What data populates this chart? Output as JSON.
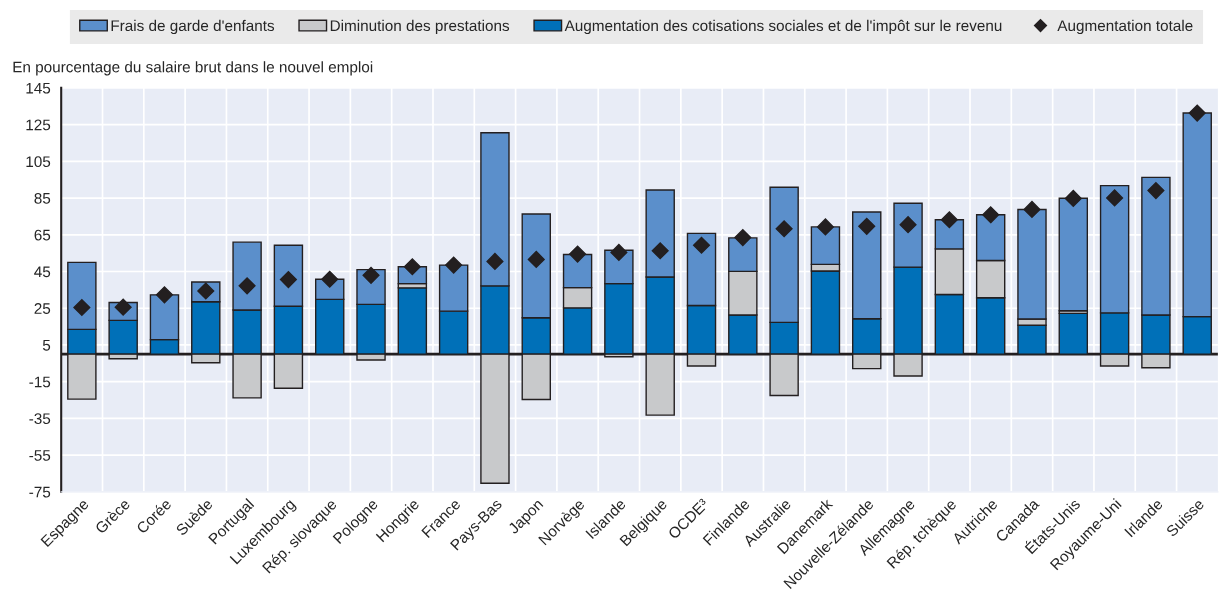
{
  "chart_data": {
    "type": "bar",
    "stacked": true,
    "ylabel": "En pourcentage du salaire brut dans le nouvel emploi",
    "categories": [
      "Espagne",
      "Grèce",
      "Corée",
      "Suède",
      "Portugal",
      "Luxembourg",
      "Rép. slovaque",
      "Pologne",
      "Hongrie",
      "France",
      "Pays-Bas",
      "Japon",
      "Norvège",
      "Islande",
      "Belgique",
      "OCDE³",
      "Finlande",
      "Australie",
      "Danemark",
      "Nouvelle-Zélande",
      "Allemagne",
      "Rép. tchèque",
      "Autriche",
      "Canada",
      "États-Unis",
      "Royaume-Uni",
      "Irlande",
      "Suisse"
    ],
    "series": [
      {
        "name": "Augmentation des cotisations sociales et de l'impôt sur le revenu",
        "color": "#0070b8",
        "values": [
          13.5,
          18.4,
          7.9,
          28.5,
          24.0,
          26.1,
          29.8,
          27.1,
          36.1,
          23.4,
          37.2,
          19.8,
          25.2,
          38.4,
          42.0,
          26.5,
          21.3,
          17.3,
          45.3,
          19.3,
          47.4,
          32.5,
          30.7,
          15.7,
          22.2,
          22.5,
          21.3,
          20.4
        ]
      },
      {
        "name": "Diminution des prestations",
        "color": "#c8c9cb",
        "values": [
          -24.5,
          -2.5,
          null,
          -4.7,
          -23.8,
          -18.6,
          null,
          -3.2,
          2.3,
          null,
          -70.3,
          -24.7,
          11.0,
          -1.4,
          -33.2,
          -6.5,
          23.8,
          -22.5,
          3.6,
          -7.9,
          -11.9,
          24.8,
          20.3,
          3.4,
          1.4,
          -6.5,
          -7.4,
          null
        ]
      },
      {
        "name": "Frais de garde d'enfants",
        "color": "#5b8fcb",
        "values": [
          36.5,
          9.7,
          24.4,
          10.8,
          37.0,
          33.2,
          11.0,
          18.9,
          9.2,
          25.1,
          83.4,
          56.5,
          18.1,
          18.2,
          47.4,
          39.3,
          18.2,
          73.6,
          20.4,
          58.1,
          34.8,
          15.9,
          24.9,
          59.7,
          61.3,
          69.3,
          75.0,
          110.9
        ]
      },
      {
        "name": "Augmentation totale",
        "type": "scatter",
        "marker": "diamond",
        "color": "#231f20",
        "x": [
          "Espagne",
          "Grèce",
          "Corée",
          "Suède",
          "Portugal",
          "Luxembourg",
          "Rép. slovaque",
          "Pologne",
          "Hongrie",
          "France",
          "Pays-Bas",
          "Japon",
          "Norvège",
          "Islande",
          "Belgique",
          "OCDE³",
          "Finlande",
          "Australie",
          "Danemark",
          "Nouvelle-Zélande",
          "Allemagne",
          "Rép. tchèque",
          "Autriche",
          "Canada",
          "États-Unis",
          "Royaume-Uni",
          "Irlande",
          "Suisse"
        ],
        "values": [
          25.4,
          25.6,
          32.3,
          34.4,
          37.2,
          40.6,
          40.8,
          42.9,
          47.6,
          48.5,
          50.5,
          51.6,
          54.5,
          55.4,
          56.3,
          59.3,
          63.5,
          68.3,
          69.3,
          69.6,
          70.5,
          73.2,
          75.9,
          78.8,
          84.8,
          85.1,
          89.1,
          131.3
        ]
      }
    ],
    "ylim": [
      -75,
      145
    ],
    "yticks": [
      145,
      125,
      105,
      85,
      65,
      45,
      25,
      5,
      -15,
      -35,
      -55,
      -75
    ],
    "ref_lines": [
      {
        "axis": "y",
        "value": 0,
        "color": "#231f20"
      }
    ],
    "grid": true,
    "legend": "top"
  }
}
